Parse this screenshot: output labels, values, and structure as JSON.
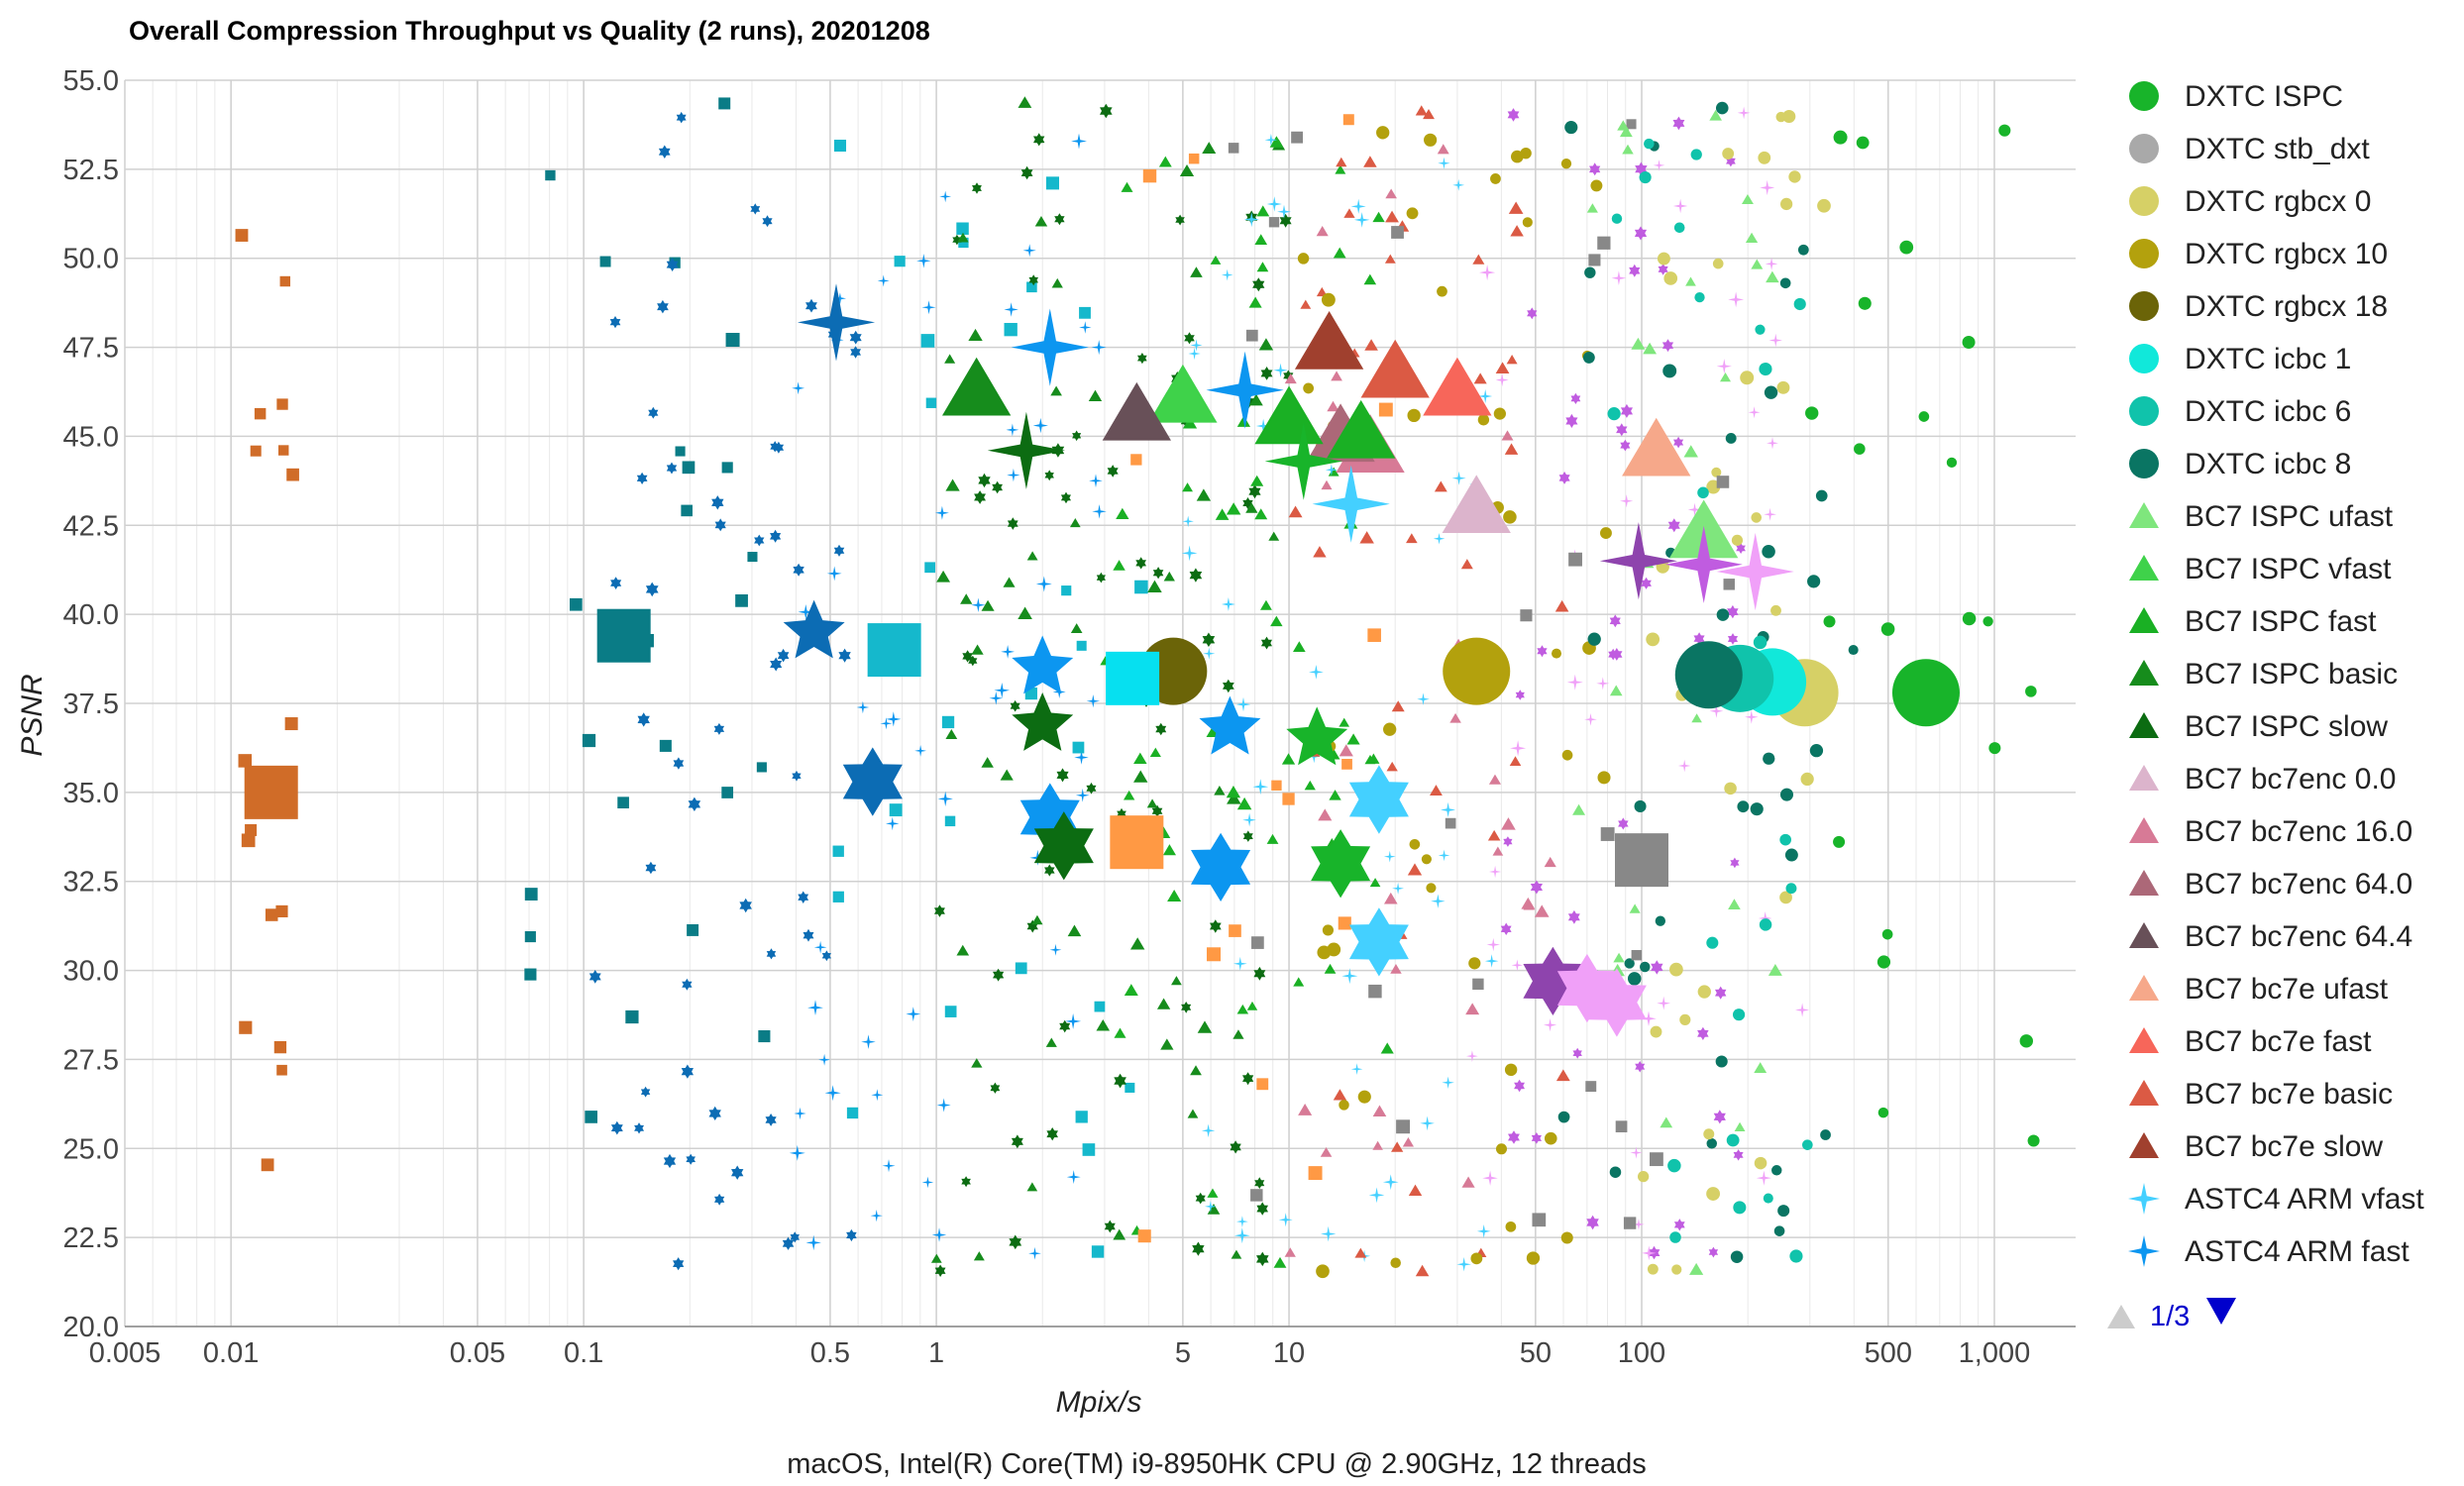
{
  "chart_data": {
    "type": "scatter",
    "title": "Overall Compression Throughput vs Quality (2 runs), 20201208",
    "xlabel": "Mpix/s",
    "ylabel": "PSNR",
    "footer": "macOS, Intel(R) Core(TM) i9-8950HK CPU @ 2.90GHz, 12 threads",
    "x_scale": "log",
    "xlim": [
      0.005,
      1700
    ],
    "ylim": [
      20,
      55
    ],
    "grid": true,
    "legend_position": "right",
    "x_ticks": [
      {
        "value": 0.005,
        "label": "0.005"
      },
      {
        "value": 0.01,
        "label": "0.01"
      },
      {
        "value": 0.05,
        "label": "0.05"
      },
      {
        "value": 0.1,
        "label": "0.1"
      },
      {
        "value": 0.5,
        "label": "0.5"
      },
      {
        "value": 1,
        "label": "1"
      },
      {
        "value": 5,
        "label": "5"
      },
      {
        "value": 10,
        "label": "10"
      },
      {
        "value": 50,
        "label": "50"
      },
      {
        "value": 100,
        "label": "100"
      },
      {
        "value": 500,
        "label": "500"
      },
      {
        "value": 1000,
        "label": "1,000"
      }
    ],
    "y_ticks": [
      {
        "value": 20,
        "label": "20.0"
      },
      {
        "value": 22.5,
        "label": "22.5"
      },
      {
        "value": 25,
        "label": "25.0"
      },
      {
        "value": 27.5,
        "label": "27.5"
      },
      {
        "value": 30,
        "label": "30.0"
      },
      {
        "value": 32.5,
        "label": "32.5"
      },
      {
        "value": 35,
        "label": "35.0"
      },
      {
        "value": 37.5,
        "label": "37.5"
      },
      {
        "value": 40,
        "label": "40.0"
      },
      {
        "value": 42.5,
        "label": "42.5"
      },
      {
        "value": 45,
        "label": "45.0"
      },
      {
        "value": 47.5,
        "label": "47.5"
      },
      {
        "value": 50,
        "label": "50.0"
      },
      {
        "value": 52.5,
        "label": "52.5"
      },
      {
        "value": 55,
        "label": "55.0"
      }
    ],
    "legend_items": [
      {
        "name": "DXTC ISPC",
        "color": "#18b42a",
        "marker": "circle"
      },
      {
        "name": "DXTC stb_dxt",
        "color": "#a9a9a9",
        "marker": "circle"
      },
      {
        "name": "DXTC rgbcx 0",
        "color": "#d6d066",
        "marker": "circle"
      },
      {
        "name": "DXTC rgbcx 10",
        "color": "#b3a10d",
        "marker": "circle"
      },
      {
        "name": "DXTC rgbcx 18",
        "color": "#6b6408",
        "marker": "circle"
      },
      {
        "name": "DXTC icbc 1",
        "color": "#11e8da",
        "marker": "circle"
      },
      {
        "name": "DXTC icbc 6",
        "color": "#10c3ab",
        "marker": "circle"
      },
      {
        "name": "DXTC icbc 8",
        "color": "#0a7563",
        "marker": "circle"
      },
      {
        "name": "BC7 ISPC ufast",
        "color": "#7fe67d",
        "marker": "triangle"
      },
      {
        "name": "BC7 ISPC vfast",
        "color": "#3fd24a",
        "marker": "triangle"
      },
      {
        "name": "BC7 ISPC fast",
        "color": "#1ab024",
        "marker": "triangle"
      },
      {
        "name": "BC7 ISPC basic",
        "color": "#168c1c",
        "marker": "triangle"
      },
      {
        "name": "BC7 ISPC slow",
        "color": "#0c6c12",
        "marker": "triangle"
      },
      {
        "name": "BC7 bc7enc 0.0",
        "color": "#dcb4cc",
        "marker": "triangle"
      },
      {
        "name": "BC7 bc7enc 16.0",
        "color": "#d77a96",
        "marker": "triangle"
      },
      {
        "name": "BC7 bc7enc 64.0",
        "color": "#ac6878",
        "marker": "triangle"
      },
      {
        "name": "BC7 bc7enc 64.4",
        "color": "#685058",
        "marker": "triangle"
      },
      {
        "name": "BC7 bc7e ufast",
        "color": "#f6a88a",
        "marker": "triangle"
      },
      {
        "name": "BC7 bc7e fast",
        "color": "#f7665a",
        "marker": "triangle"
      },
      {
        "name": "BC7 bc7e basic",
        "color": "#db5a44",
        "marker": "triangle"
      },
      {
        "name": "BC7 bc7e slow",
        "color": "#a0402e",
        "marker": "triangle"
      },
      {
        "name": "ASTC4 ARM vfast",
        "color": "#44d0ff",
        "marker": "star4"
      },
      {
        "name": "ASTC4 ARM fast",
        "color": "#0c96f0",
        "marker": "star4"
      }
    ],
    "legend_pager": {
      "text": "1/3"
    },
    "series": [
      {
        "color": "#18b42a",
        "marker": "circle",
        "points": [
          {
            "x": 640,
            "y": 37.8
          }
        ]
      },
      {
        "color": "#d6d066",
        "marker": "circle",
        "points": [
          {
            "x": 290,
            "y": 37.8
          }
        ]
      },
      {
        "color": "#11e8da",
        "marker": "circle",
        "points": [
          {
            "x": 235,
            "y": 38.1
          }
        ]
      },
      {
        "color": "#10c3ab",
        "marker": "circle",
        "points": [
          {
            "x": 190,
            "y": 38.2
          }
        ]
      },
      {
        "color": "#0a7563",
        "marker": "circle",
        "points": [
          {
            "x": 155,
            "y": 38.3
          }
        ]
      },
      {
        "color": "#b3a10d",
        "marker": "circle",
        "points": [
          {
            "x": 34,
            "y": 38.4
          }
        ]
      },
      {
        "color": "#6b6408",
        "marker": "circle",
        "points": [
          {
            "x": 4.7,
            "y": 38.4
          }
        ]
      },
      {
        "color": "#7fe67d",
        "marker": "triangle",
        "points": [
          {
            "x": 150,
            "y": 42.3
          }
        ]
      },
      {
        "color": "#f6a88a",
        "marker": "triangle",
        "points": [
          {
            "x": 110,
            "y": 44.6
          }
        ]
      },
      {
        "color": "#dcb4cc",
        "marker": "triangle",
        "points": [
          {
            "x": 34,
            "y": 43.0
          }
        ]
      },
      {
        "color": "#f7665a",
        "marker": "triangle",
        "points": [
          {
            "x": 30,
            "y": 46.3
          }
        ]
      },
      {
        "color": "#db5a44",
        "marker": "triangle",
        "points": [
          {
            "x": 20,
            "y": 46.8
          }
        ]
      },
      {
        "color": "#a0402e",
        "marker": "triangle",
        "points": [
          {
            "x": 13,
            "y": 47.6
          }
        ]
      },
      {
        "color": "#d77a96",
        "marker": "triangle",
        "points": [
          {
            "x": 17,
            "y": 44.7
          }
        ]
      },
      {
        "color": "#ac6878",
        "marker": "triangle",
        "points": [
          {
            "x": 14,
            "y": 45.0
          }
        ]
      },
      {
        "color": "#1ab024",
        "marker": "triangle",
        "points": [
          {
            "x": 10,
            "y": 45.5
          },
          {
            "x": 16,
            "y": 45.1
          }
        ]
      },
      {
        "color": "#3fd24a",
        "marker": "triangle",
        "points": [
          {
            "x": 5,
            "y": 46.1
          }
        ]
      },
      {
        "color": "#685058",
        "marker": "triangle",
        "points": [
          {
            "x": 3.7,
            "y": 45.6
          }
        ]
      },
      {
        "color": "#168c1c",
        "marker": "triangle",
        "points": [
          {
            "x": 1.3,
            "y": 46.3
          }
        ]
      },
      {
        "color": "#0c6c12",
        "marker": "star4",
        "points": [
          {
            "x": 1.8,
            "y": 44.6
          }
        ]
      },
      {
        "color": "#18b42a",
        "marker": "star4",
        "points": [
          {
            "x": 11,
            "y": 44.3
          }
        ]
      },
      {
        "color": "#0c96f0",
        "marker": "star4",
        "points": [
          {
            "x": 2.1,
            "y": 47.5
          },
          {
            "x": 7.5,
            "y": 46.3
          }
        ]
      },
      {
        "color": "#0c6cb4",
        "marker": "star4",
        "points": [
          {
            "x": 0.52,
            "y": 48.2
          }
        ]
      },
      {
        "color": "#44d0ff",
        "marker": "star4",
        "points": [
          {
            "x": 15,
            "y": 43.1
          }
        ]
      },
      {
        "color": "#8e44ad",
        "marker": "star4",
        "points": [
          {
            "x": 98,
            "y": 41.5
          }
        ]
      },
      {
        "color": "#c05ce0",
        "marker": "star4",
        "points": [
          {
            "x": 150,
            "y": 41.4
          }
        ]
      },
      {
        "color": "#f0a0f8",
        "marker": "star4",
        "points": [
          {
            "x": 210,
            "y": 41.2
          }
        ]
      },
      {
        "color": "#0c6cb4",
        "marker": "star5",
        "points": [
          {
            "x": 0.45,
            "y": 39.5
          }
        ]
      },
      {
        "color": "#0c96f0",
        "marker": "star5",
        "points": [
          {
            "x": 2.0,
            "y": 38.5
          }
        ]
      },
      {
        "color": "#0c6c12",
        "marker": "star5",
        "points": [
          {
            "x": 2.0,
            "y": 36.9
          }
        ]
      },
      {
        "color": "#18b42a",
        "marker": "star5",
        "points": [
          {
            "x": 12,
            "y": 36.5
          }
        ]
      },
      {
        "color": "#0c96f0",
        "marker": "star5",
        "points": [
          {
            "x": 6.8,
            "y": 36.8
          }
        ]
      },
      {
        "color": "#0c6cb4",
        "marker": "star6",
        "points": [
          {
            "x": 0.66,
            "y": 35.3
          }
        ]
      },
      {
        "color": "#0c96f0",
        "marker": "star6",
        "points": [
          {
            "x": 2.1,
            "y": 34.3
          }
        ]
      },
      {
        "color": "#44d0ff",
        "marker": "star6",
        "points": [
          {
            "x": 18,
            "y": 34.8
          },
          {
            "x": 18,
            "y": 30.8
          }
        ]
      },
      {
        "color": "#18b42a",
        "marker": "star6",
        "points": [
          {
            "x": 14,
            "y": 33.0
          }
        ]
      },
      {
        "color": "#0c96f0",
        "marker": "star6",
        "points": [
          {
            "x": 6.4,
            "y": 32.9
          }
        ]
      },
      {
        "color": "#0c6c12",
        "marker": "star6",
        "points": [
          {
            "x": 2.3,
            "y": 33.5
          }
        ]
      },
      {
        "color": "#8e44ad",
        "marker": "star6",
        "points": [
          {
            "x": 56,
            "y": 29.7
          }
        ]
      },
      {
        "color": "#f0a0f8",
        "marker": "star6",
        "points": [
          {
            "x": 70,
            "y": 29.5
          },
          {
            "x": 85,
            "y": 29.1
          }
        ]
      },
      {
        "color": "#0a7c86",
        "marker": "square",
        "points": [
          {
            "x": 0.13,
            "y": 39.4
          }
        ]
      },
      {
        "color": "#15b8cc",
        "marker": "square",
        "points": [
          {
            "x": 0.76,
            "y": 39.0
          }
        ]
      },
      {
        "color": "#06e0f0",
        "marker": "square",
        "points": [
          {
            "x": 3.6,
            "y": 38.2
          }
        ]
      },
      {
        "color": "#ff9944",
        "marker": "square",
        "points": [
          {
            "x": 3.7,
            "y": 33.6
          }
        ]
      },
      {
        "color": "#d06c28",
        "marker": "square",
        "points": [
          {
            "x": 0.013,
            "y": 35.0
          }
        ]
      },
      {
        "color": "#888888",
        "marker": "square",
        "points": [
          {
            "x": 100,
            "y": 33.1
          }
        ]
      }
    ]
  }
}
